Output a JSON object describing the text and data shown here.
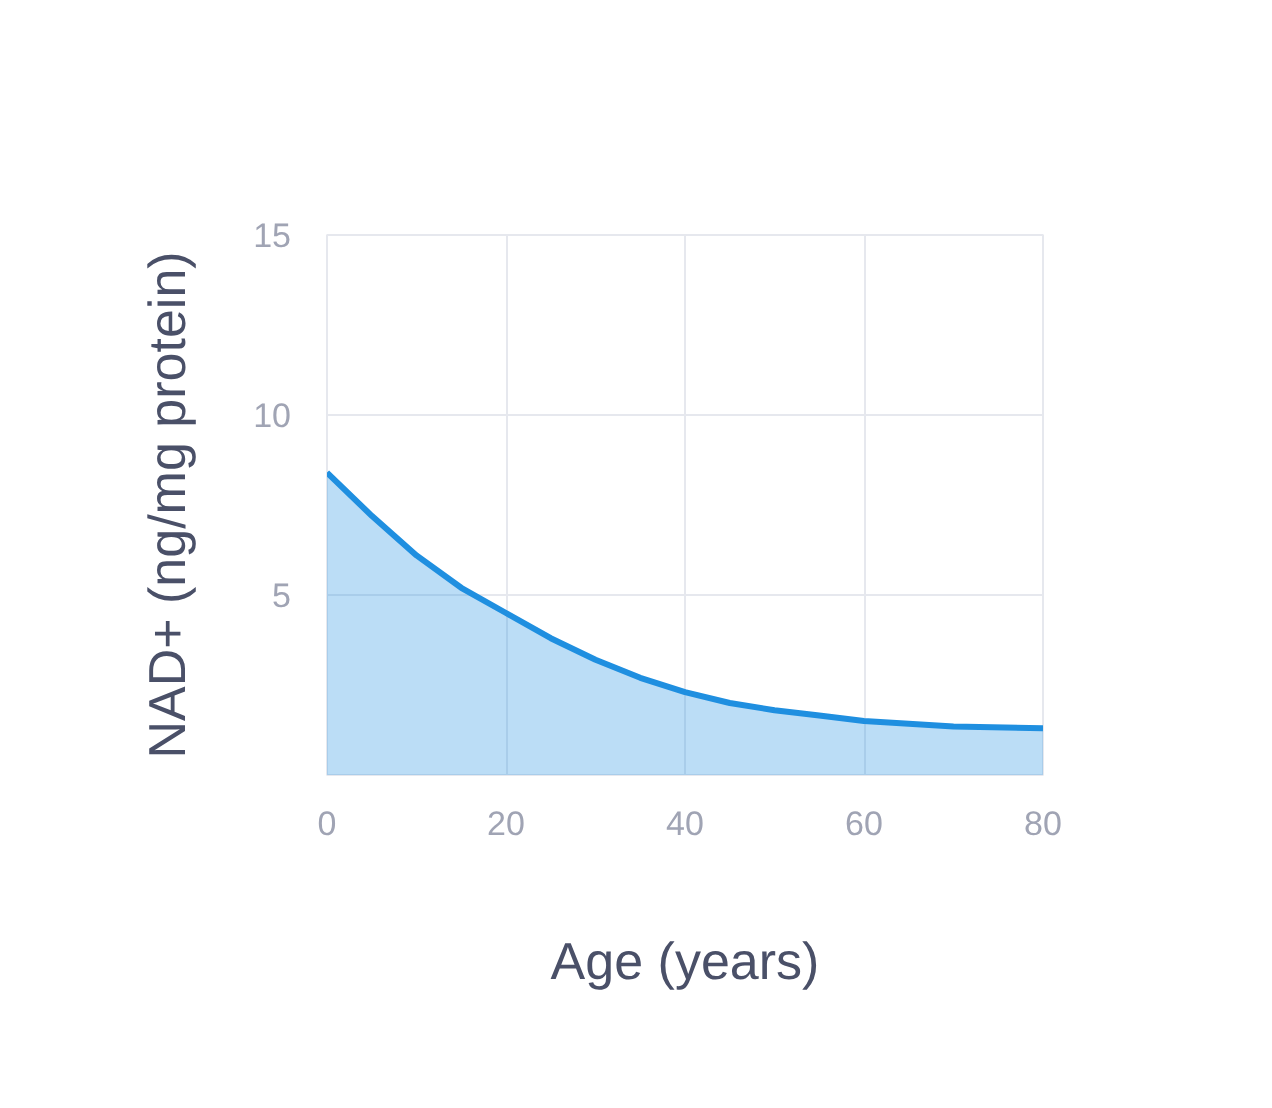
{
  "chart_data": {
    "type": "area",
    "xlabel": "Age (years)",
    "ylabel": "NAD+ (ng/mg protein)",
    "x": [
      0,
      5,
      10,
      15,
      20,
      25,
      30,
      35,
      40,
      45,
      50,
      55,
      60,
      70,
      80
    ],
    "series": [
      {
        "color": "#1f8fe0",
        "values": [
          8.4,
          7.2,
          6.1,
          5.2,
          4.5,
          3.8,
          3.2,
          2.7,
          2.3,
          2.0,
          1.8,
          1.65,
          1.5,
          1.35,
          1.3
        ]
      }
    ],
    "xlim": [
      0,
      80
    ],
    "ylim": [
      0,
      15
    ],
    "xticks": [
      0,
      20,
      40,
      60,
      80
    ],
    "yticks": [
      5,
      10,
      15
    ],
    "grid": true
  }
}
